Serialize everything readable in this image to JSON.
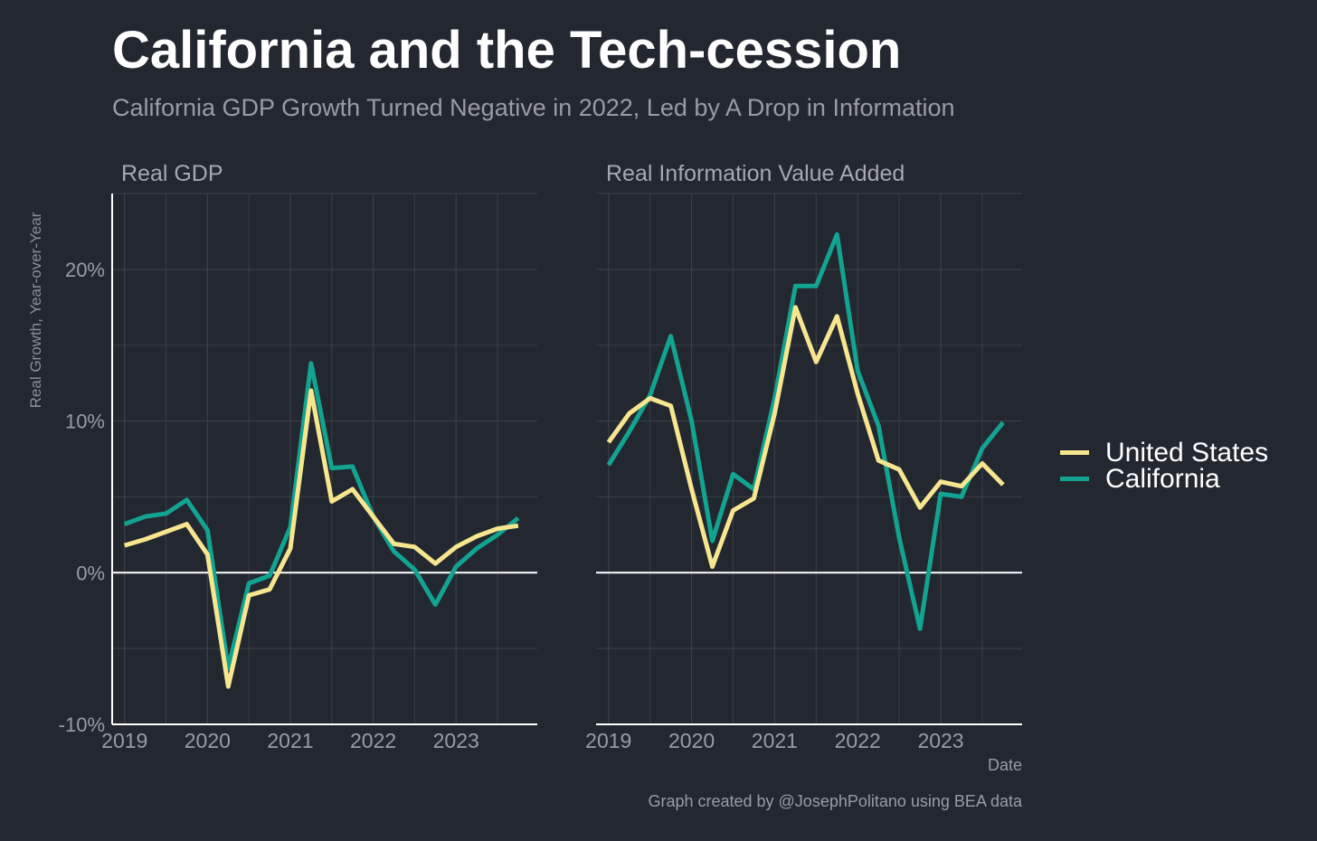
{
  "header": {
    "title": "California and the Tech-cession",
    "subtitle": "California GDP Growth Turned Negative in 2022, Led by A Drop in Information"
  },
  "footer": {
    "date_label": "Date",
    "caption": "Graph created by @JosephPolitano using BEA data"
  },
  "colors": {
    "background": "#232730",
    "grid": "#3b3f47",
    "united_states": "#f8e68f",
    "california": "#12a391",
    "axis": "#ffffff"
  },
  "chart_data": {
    "type": "line",
    "ylabel": "Real Growth, Year-over-Year",
    "xlabel": "Date",
    "ylim": [
      -10,
      25
    ],
    "yticks": [
      -10,
      0,
      10,
      20
    ],
    "ytick_labels": [
      "-10%",
      "0%",
      "10%",
      "20%"
    ],
    "xlim": [
      2018.85,
      2023.98
    ],
    "xticks": [
      2019,
      2020,
      2021,
      2022,
      2023
    ],
    "xtick_labels": [
      "2019",
      "2020",
      "2021",
      "2022",
      "2023"
    ],
    "x": [
      2019.0,
      2019.25,
      2019.5,
      2019.75,
      2020.0,
      2020.25,
      2020.5,
      2020.75,
      2021.0,
      2021.25,
      2021.5,
      2021.75,
      2022.0,
      2022.25,
      2022.5,
      2022.75,
      2023.0,
      2023.25,
      2023.5,
      2023.75
    ],
    "legend": [
      {
        "name": "United States",
        "color": "#f8e68f"
      },
      {
        "name": "California",
        "color": "#12a391"
      }
    ],
    "panels": [
      {
        "title": "Real GDP",
        "series": [
          {
            "name": "California",
            "values": [
              3.2,
              3.7,
              3.9,
              4.8,
              2.8,
              -6.3,
              -0.7,
              -0.2,
              3.0,
              13.8,
              6.9,
              7.0,
              3.7,
              1.4,
              0.2,
              -2.1,
              0.4,
              1.6,
              2.5,
              3.6
            ]
          },
          {
            "name": "United States",
            "values": [
              1.8,
              2.2,
              2.7,
              3.2,
              1.2,
              -7.5,
              -1.5,
              -1.1,
              1.6,
              12.0,
              4.7,
              5.5,
              3.7,
              1.9,
              1.7,
              0.6,
              1.7,
              2.4,
              2.9,
              3.1
            ]
          }
        ]
      },
      {
        "title": "Real Information Value Added",
        "series": [
          {
            "name": "California",
            "values": [
              7.1,
              9.3,
              11.7,
              15.6,
              10.0,
              2.1,
              6.5,
              5.5,
              11.5,
              18.9,
              18.9,
              22.3,
              13.3,
              9.7,
              2.3,
              -3.7,
              5.2,
              5.0,
              8.2,
              9.9
            ]
          },
          {
            "name": "United States",
            "values": [
              8.6,
              10.5,
              11.5,
              11.0,
              5.5,
              0.4,
              4.1,
              4.9,
              10.5,
              17.5,
              13.9,
              16.9,
              11.8,
              7.4,
              6.8,
              4.3,
              6.0,
              5.7,
              7.2,
              5.8
            ]
          }
        ]
      }
    ]
  }
}
